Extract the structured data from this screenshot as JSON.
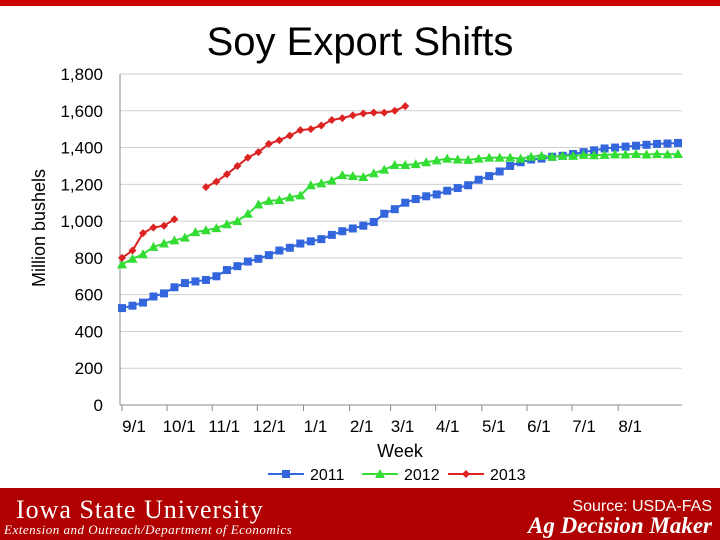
{
  "header": {
    "title": "Soy Export Shifts"
  },
  "footer": {
    "university": "Iowa State University",
    "department": "Extension and Outreach/Department of Economics",
    "source": "Source: USDA-FAS",
    "brand": "Ag Decision Maker",
    "accent_color": "#b00000"
  },
  "chart_data": {
    "type": "line",
    "title": "Soy Export Shifts",
    "xlabel": "Week",
    "ylabel": "Million bushels",
    "ylim": [
      0,
      1800
    ],
    "yticks": [
      "0",
      "200",
      "400",
      "600",
      "800",
      "1,000",
      "1,200",
      "1,400",
      "1,600",
      "1,800"
    ],
    "xticks": [
      "9/1",
      "10/1",
      "11/1",
      "12/1",
      "1/1",
      "2/1",
      "3/1",
      "4/1",
      "5/1",
      "6/1",
      "7/1",
      "8/1"
    ],
    "grid": "horizontal",
    "legend_position": "bottom",
    "series": [
      {
        "name": "2011",
        "color": "#3366dd",
        "marker": "square",
        "values": [
          527,
          540,
          557,
          590,
          607,
          640,
          663,
          672,
          680,
          700,
          734,
          755,
          780,
          795,
          815,
          840,
          855,
          878,
          890,
          902,
          925,
          945,
          960,
          975,
          995,
          1040,
          1065,
          1100,
          1120,
          1135,
          1145,
          1165,
          1180,
          1195,
          1225,
          1245,
          1270,
          1300,
          1320,
          1335,
          1340,
          1350,
          1355,
          1365,
          1375,
          1385,
          1395,
          1400,
          1405,
          1410,
          1415,
          1420,
          1422,
          1425
        ]
      },
      {
        "name": "2012",
        "color": "#33dd33",
        "marker": "triangle",
        "values": [
          765,
          795,
          820,
          860,
          878,
          895,
          910,
          940,
          950,
          962,
          983,
          1000,
          1040,
          1090,
          1110,
          1115,
          1130,
          1140,
          1195,
          1205,
          1220,
          1250,
          1245,
          1240,
          1260,
          1280,
          1305,
          1305,
          1310,
          1320,
          1330,
          1340,
          1335,
          1333,
          1340,
          1345,
          1345,
          1345,
          1340,
          1350,
          1355,
          1350,
          1355,
          1355,
          1360,
          1358,
          1360,
          1363,
          1362,
          1365,
          1362,
          1365,
          1363,
          1365
        ]
      },
      {
        "name": "2013",
        "color": "#dd2222",
        "marker": "diamond",
        "values": [
          800,
          840,
          935,
          965,
          975,
          1010,
          null,
          null,
          1185,
          1215,
          1255,
          1300,
          1345,
          1375,
          1420,
          1440,
          1465,
          1495,
          1500,
          1520,
          1550,
          1560,
          1575,
          1585,
          1590,
          1590,
          1600,
          1625
        ]
      }
    ]
  }
}
